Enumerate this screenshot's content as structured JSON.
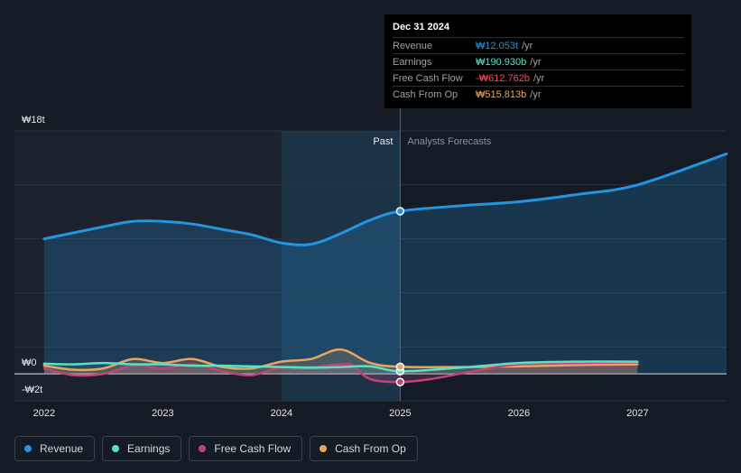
{
  "tooltip": {
    "date": "Dec 31 2024",
    "rows": [
      {
        "label": "Revenue",
        "value": "₩12.053t",
        "unit": "/yr",
        "color": "#2394df"
      },
      {
        "label": "Earnings",
        "value": "₩190.930b",
        "unit": "/yr",
        "color": "#58e1c4"
      },
      {
        "label": "Free Cash Flow",
        "value": "-₩612.762b",
        "unit": "/yr",
        "color": "#ff4a55"
      },
      {
        "label": "Cash From Op",
        "value": "₩515.813b",
        "unit": "/yr",
        "color": "#f2a65a"
      }
    ]
  },
  "legend": [
    {
      "label": "Revenue",
      "color": "#2394df"
    },
    {
      "label": "Earnings",
      "color": "#58e1c4"
    },
    {
      "label": "Free Cash Flow",
      "color": "#c0437a"
    },
    {
      "label": "Cash From Op",
      "color": "#e9a45f"
    }
  ],
  "chart_data": {
    "type": "line",
    "y_tick_labels": [
      "₩18t",
      "₩0",
      "-₩2t"
    ],
    "x_tick_labels": [
      "2022",
      "2023",
      "2024",
      "2025",
      "2026",
      "2027"
    ],
    "past_label": "Past",
    "forecast_label": "Analysts Forecasts",
    "ylim": [
      -2,
      18
    ],
    "xlim": [
      2021.75,
      2027.75
    ],
    "grid": true,
    "divider_x": 2025.0,
    "highlight_range": [
      2024.0,
      2025.0
    ],
    "series": [
      {
        "name": "Revenue",
        "color": "#2394df",
        "x": [
          2022.0,
          2022.5,
          2022.75,
          2023.0,
          2023.25,
          2023.5,
          2023.75,
          2024.0,
          2024.25,
          2024.5,
          2024.75,
          2025.0,
          2025.5,
          2026.0,
          2026.5,
          2027.0,
          2027.75
        ],
        "y": [
          10.0,
          10.9,
          11.3,
          11.3,
          11.1,
          10.7,
          10.3,
          9.7,
          9.6,
          10.4,
          11.4,
          12.05,
          12.45,
          12.75,
          13.3,
          14.0,
          16.3
        ]
      },
      {
        "name": "Earnings",
        "color": "#58e1c4",
        "x": [
          2022.0,
          2022.25,
          2022.5,
          2022.75,
          2023.0,
          2023.25,
          2023.5,
          2023.75,
          2024.0,
          2024.25,
          2024.5,
          2024.75,
          2025.0,
          2025.5,
          2026.0,
          2026.5,
          2027.0
        ],
        "y": [
          0.75,
          0.7,
          0.8,
          0.7,
          0.7,
          0.6,
          0.6,
          0.55,
          0.5,
          0.45,
          0.5,
          0.55,
          0.19,
          0.45,
          0.8,
          0.9,
          0.9
        ]
      },
      {
        "name": "Free Cash Flow",
        "color": "#c0437a",
        "x": [
          2022.0,
          2022.25,
          2022.5,
          2022.75,
          2023.0,
          2023.25,
          2023.5,
          2023.75,
          2024.0,
          2024.25,
          2024.5,
          2024.6,
          2024.75,
          2025.0,
          2025.25,
          2025.5,
          2025.75,
          2026.0,
          2026.5,
          2027.0
        ],
        "y": [
          0.4,
          -0.1,
          0.0,
          0.6,
          0.4,
          0.7,
          0.2,
          -0.1,
          0.5,
          0.5,
          0.7,
          0.6,
          -0.4,
          -0.61,
          -0.4,
          0.0,
          0.4,
          0.7,
          0.8,
          0.85
        ]
      },
      {
        "name": "Cash From Op",
        "color": "#e9a45f",
        "x": [
          2022.0,
          2022.25,
          2022.5,
          2022.75,
          2023.0,
          2023.25,
          2023.5,
          2023.75,
          2024.0,
          2024.25,
          2024.5,
          2024.75,
          2025.0,
          2025.5,
          2026.0,
          2026.5,
          2027.0
        ],
        "y": [
          0.6,
          0.3,
          0.4,
          1.1,
          0.8,
          1.1,
          0.5,
          0.4,
          0.9,
          1.1,
          1.8,
          0.8,
          0.52,
          0.5,
          0.55,
          0.65,
          0.7
        ]
      }
    ]
  }
}
